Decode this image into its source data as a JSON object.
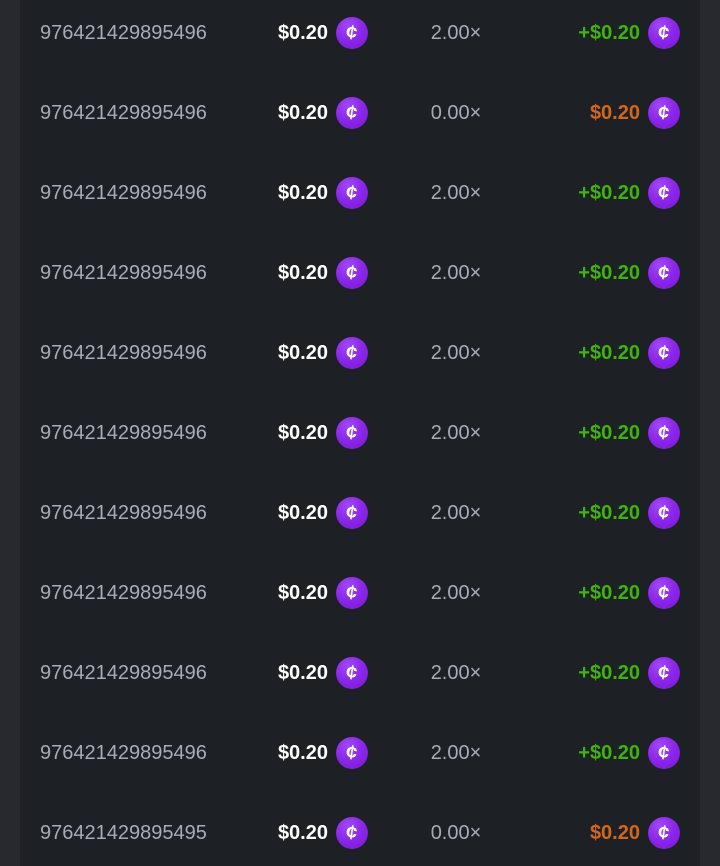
{
  "colors": {
    "page_background": "#27292e",
    "table_background": "#1d2024",
    "muted_text": "#a6adb7",
    "bet_text": "#ffffff",
    "win_text": "#3fb30e",
    "loss_text": "#d4671a",
    "coin_purple": "#8c28eb"
  },
  "coin": {
    "symbol": "¢"
  },
  "bet_table": {
    "rows": [
      {
        "id": "976421429895496",
        "bet": "$0.20",
        "multiplier": "2.00×",
        "payout": "+$0.20",
        "outcome": "win"
      },
      {
        "id": "976421429895496",
        "bet": "$0.20",
        "multiplier": "0.00×",
        "payout": "$0.20",
        "outcome": "loss"
      },
      {
        "id": "976421429895496",
        "bet": "$0.20",
        "multiplier": "2.00×",
        "payout": "+$0.20",
        "outcome": "win"
      },
      {
        "id": "976421429895496",
        "bet": "$0.20",
        "multiplier": "2.00×",
        "payout": "+$0.20",
        "outcome": "win"
      },
      {
        "id": "976421429895496",
        "bet": "$0.20",
        "multiplier": "2.00×",
        "payout": "+$0.20",
        "outcome": "win"
      },
      {
        "id": "976421429895496",
        "bet": "$0.20",
        "multiplier": "2.00×",
        "payout": "+$0.20",
        "outcome": "win"
      },
      {
        "id": "976421429895496",
        "bet": "$0.20",
        "multiplier": "2.00×",
        "payout": "+$0.20",
        "outcome": "win"
      },
      {
        "id": "976421429895496",
        "bet": "$0.20",
        "multiplier": "2.00×",
        "payout": "+$0.20",
        "outcome": "win"
      },
      {
        "id": "976421429895496",
        "bet": "$0.20",
        "multiplier": "2.00×",
        "payout": "+$0.20",
        "outcome": "win"
      },
      {
        "id": "976421429895496",
        "bet": "$0.20",
        "multiplier": "2.00×",
        "payout": "+$0.20",
        "outcome": "win"
      },
      {
        "id": "976421429895495",
        "bet": "$0.20",
        "multiplier": "0.00×",
        "payout": "$0.20",
        "outcome": "loss"
      }
    ]
  }
}
